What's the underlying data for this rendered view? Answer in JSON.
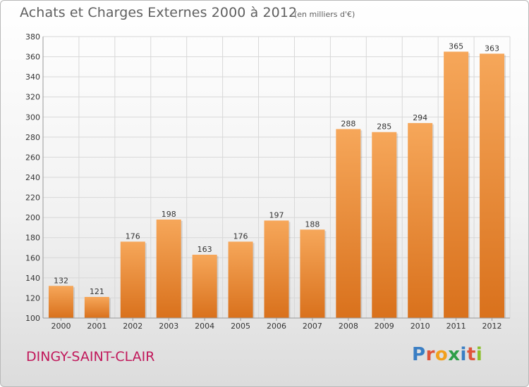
{
  "header": {
    "title": "Achats et Charges Externes 2000 à 2012",
    "subtitle": "(en milliers d'€)"
  },
  "footer": {
    "place": "DINGY-SAINT-CLAIR",
    "logo": "Proxiti",
    "logo_colors": [
      "#3a7ec4",
      "#e0543a",
      "#f2a01c",
      "#2e9e48",
      "#3a7ec4",
      "#e0543a",
      "#8bbf2b"
    ]
  },
  "colors": {
    "bar_light": "#f6a75a",
    "bar_dark": "#d9711c",
    "grid": "#d8d8d8",
    "axis_text": "#333333"
  },
  "chart_data": {
    "type": "bar",
    "categories": [
      "2000",
      "2001",
      "2002",
      "2003",
      "2004",
      "2005",
      "2006",
      "2007",
      "2008",
      "2009",
      "2010",
      "2011",
      "2012"
    ],
    "values": [
      132,
      121,
      176,
      198,
      163,
      176,
      197,
      188,
      288,
      285,
      294,
      365,
      363
    ],
    "ylim": [
      100,
      380
    ],
    "yticks": [
      100,
      120,
      140,
      160,
      180,
      200,
      220,
      240,
      260,
      280,
      300,
      320,
      340,
      360,
      380
    ],
    "grid": true,
    "data_labels": true
  }
}
